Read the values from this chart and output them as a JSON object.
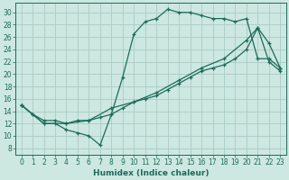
{
  "xlabel": "Humidex (Indice chaleur)",
  "bg_color": "#cce8e0",
  "line_color": "#1e6b5a",
  "grid_color": "#aaccc4",
  "spine_color": "#1e6b5a",
  "xlim": [
    -0.5,
    23.5
  ],
  "ylim": [
    7.0,
    31.5
  ],
  "xticks": [
    0,
    1,
    2,
    3,
    4,
    5,
    6,
    7,
    8,
    9,
    10,
    11,
    12,
    13,
    14,
    15,
    16,
    17,
    18,
    19,
    20,
    21,
    22,
    23
  ],
  "yticks": [
    8,
    10,
    12,
    14,
    16,
    18,
    20,
    22,
    24,
    26,
    28,
    30
  ],
  "line1_x": [
    0,
    1,
    2,
    3,
    4,
    5,
    6,
    7,
    8,
    9,
    10,
    11,
    12,
    13,
    14,
    15,
    16,
    17,
    18,
    19,
    20,
    21,
    22,
    23
  ],
  "line1_y": [
    15,
    13.5,
    12,
    12,
    11,
    10.5,
    10,
    8.5,
    13.5,
    19.5,
    26.5,
    28.5,
    29.0,
    30.5,
    30.0,
    30.0,
    29.5,
    29.0,
    29.0,
    28.5,
    29.0,
    22.5,
    22.5,
    21.0
  ],
  "line2_x": [
    0,
    1,
    2,
    3,
    4,
    5,
    6,
    7,
    8,
    9,
    10,
    11,
    12,
    13,
    14,
    15,
    16,
    17,
    18,
    19,
    20,
    21,
    22,
    23
  ],
  "line2_y": [
    15,
    13.5,
    12.5,
    12.5,
    12.0,
    12.5,
    12.5,
    13.0,
    13.5,
    14.5,
    15.5,
    16.0,
    16.5,
    17.5,
    18.5,
    19.5,
    20.5,
    21.0,
    21.5,
    22.5,
    24.0,
    27.5,
    22.0,
    20.5
  ],
  "line3_x": [
    0,
    2,
    4,
    6,
    8,
    10,
    12,
    14,
    16,
    18,
    20,
    21,
    22,
    23
  ],
  "line3_y": [
    15,
    12,
    12,
    12.5,
    14.5,
    15.5,
    17.0,
    19.0,
    21.0,
    22.5,
    25.5,
    27.5,
    25.0,
    21.0
  ]
}
